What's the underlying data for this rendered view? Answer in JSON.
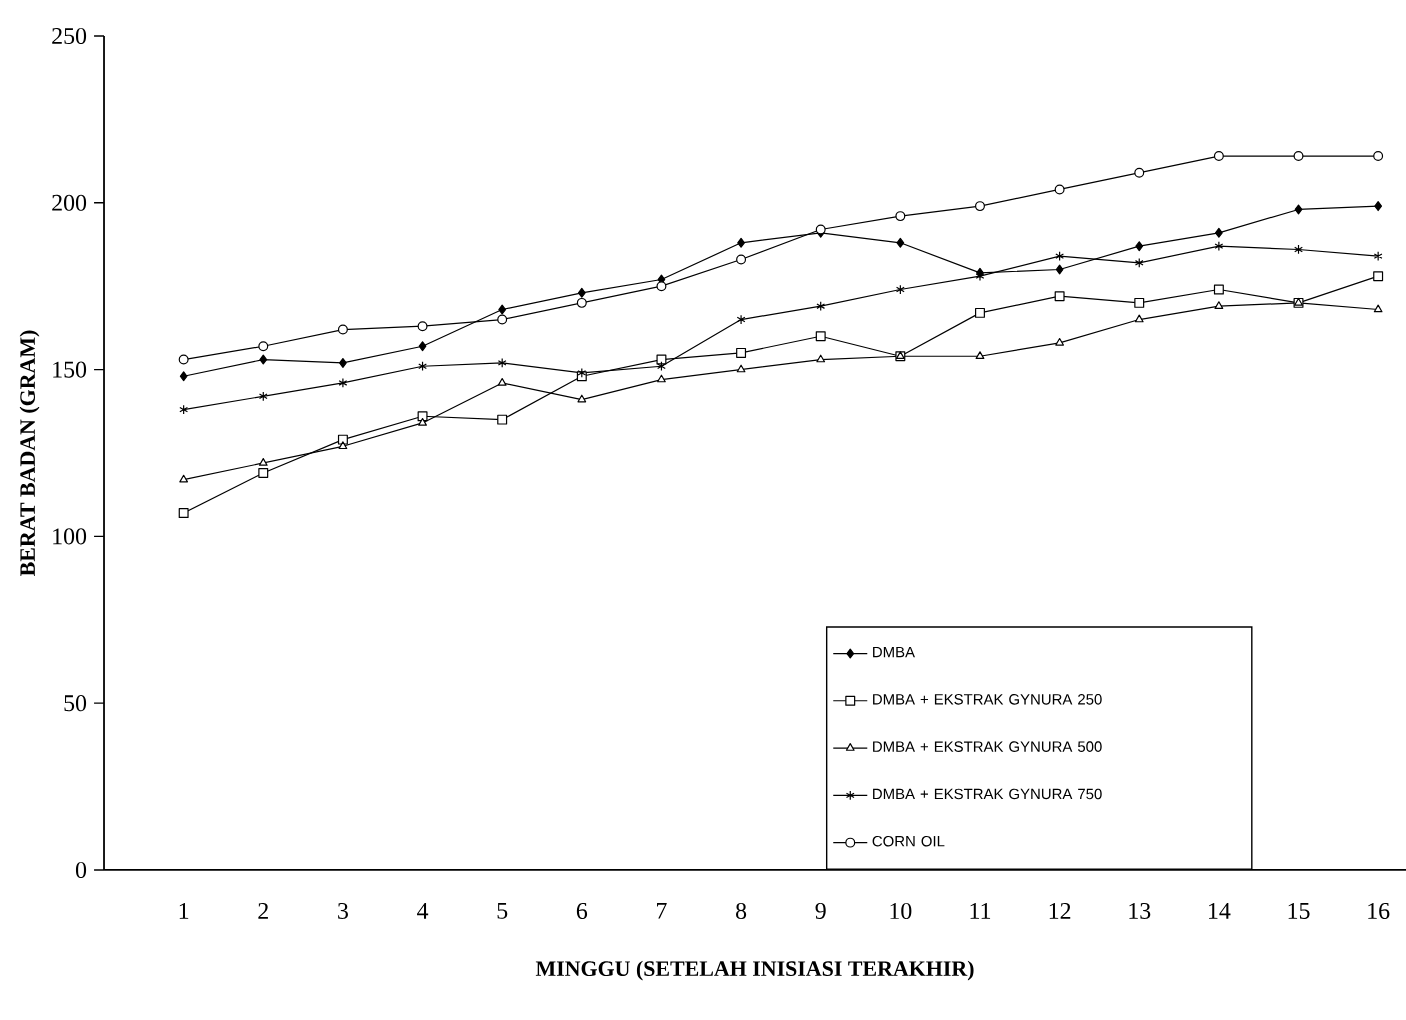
{
  "chart_data": {
    "type": "line",
    "xlabel": "MINGGU (SETELAH INISIASI TERAKHIR)",
    "ylabel": "BERAT BADAN (GRAM)",
    "categories": [
      "1",
      "2",
      "3",
      "4",
      "5",
      "6",
      "7",
      "8",
      "9",
      "10",
      "11",
      "12",
      "13",
      "14",
      "15",
      "16"
    ],
    "ylim": [
      0,
      250
    ],
    "yticks": [
      0,
      50,
      100,
      150,
      200,
      250
    ],
    "grid": false,
    "legend": "bottom right",
    "line_style": "solid",
    "series": [
      {
        "name": "DMBA",
        "color": "#000000",
        "marker": "diamond",
        "values": [
          148,
          153,
          152,
          157,
          168,
          173,
          177,
          188,
          191,
          188,
          179,
          180,
          187,
          191,
          198,
          199
        ]
      },
      {
        "name": "DMBA + EKSTRAK GYNURA 250",
        "color": "#000000",
        "marker": "square",
        "values": [
          107,
          119,
          129,
          136,
          135,
          148,
          153,
          155,
          160,
          154,
          167,
          172,
          170,
          174,
          170,
          178
        ]
      },
      {
        "name": "DMBA + EKSTRAK GYNURA 500",
        "color": "#000000",
        "marker": "triangle",
        "values": [
          117,
          122,
          127,
          134,
          146,
          141,
          147,
          150,
          153,
          154,
          154,
          158,
          165,
          169,
          170,
          168
        ]
      },
      {
        "name": "DMBA + EKSTRAK GYNURA 750",
        "color": "#000000",
        "marker": "cross",
        "values": [
          138,
          142,
          146,
          151,
          152,
          149,
          151,
          165,
          169,
          174,
          178,
          184,
          182,
          187,
          186,
          184
        ]
      },
      {
        "name": "CORN OIL",
        "color": "#000000",
        "marker": "circle",
        "values": [
          153,
          157,
          162,
          163,
          165,
          170,
          175,
          183,
          192,
          196,
          199,
          204,
          209,
          214,
          214,
          214
        ]
      }
    ]
  }
}
